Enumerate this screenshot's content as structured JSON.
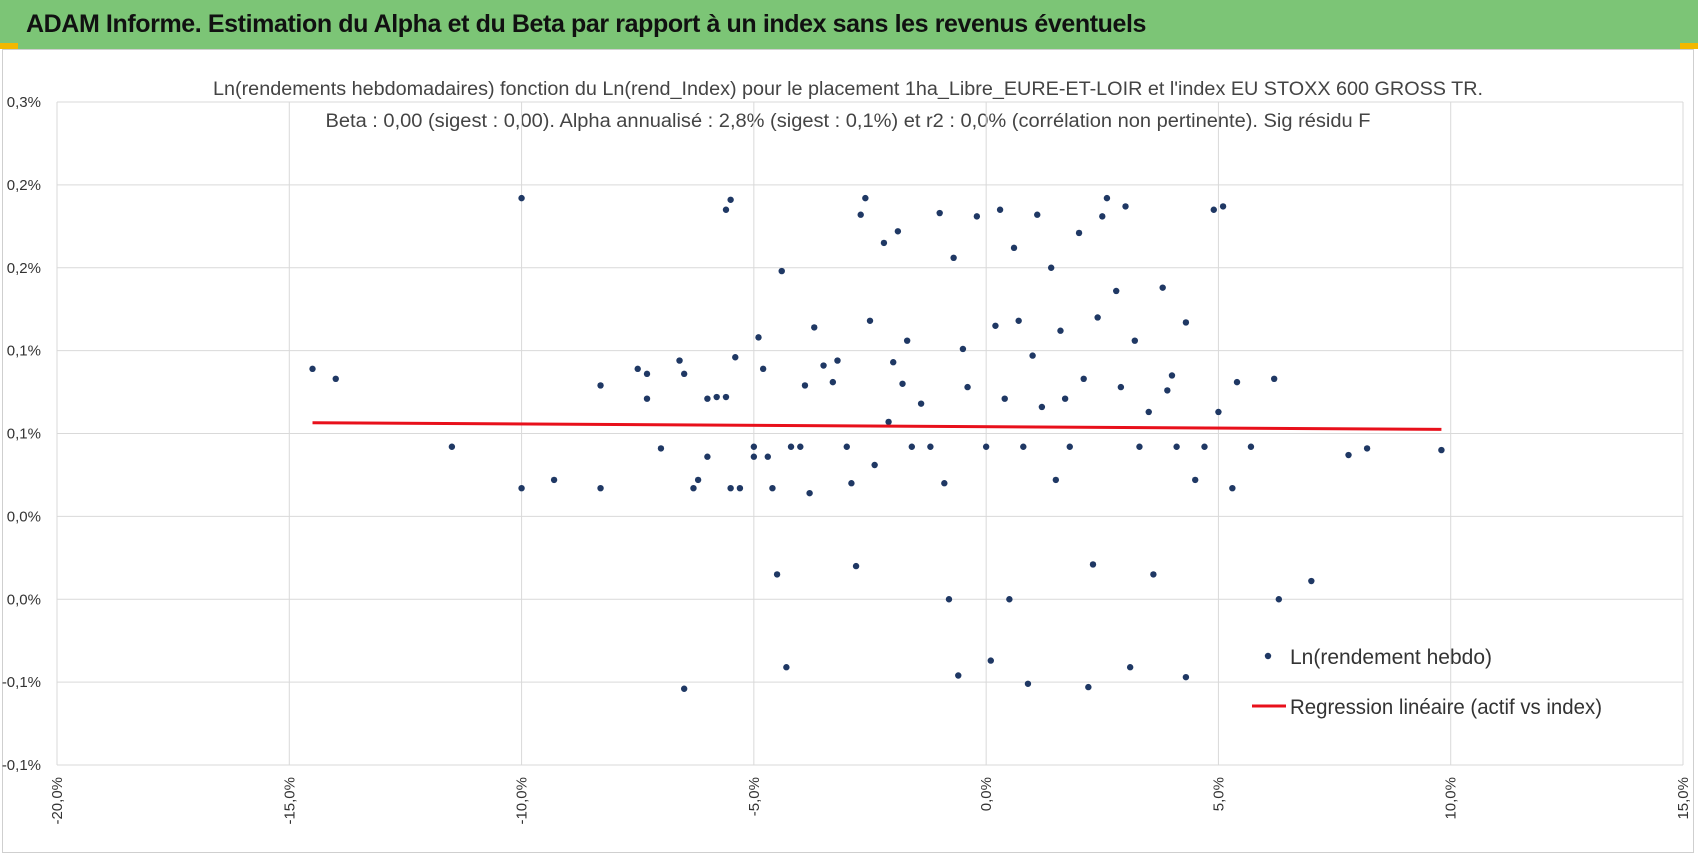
{
  "header": {
    "title": "ADAM Informe. Estimation du Alpha et du Beta par rapport à un index sans les revenus éventuels"
  },
  "colors": {
    "banner": "#7cc576",
    "accent_corner": "#f2b800",
    "points": "#1f3864",
    "regression": "#e8101b",
    "grid": "#d9d9d9"
  },
  "chart_data": {
    "type": "scatter",
    "title": "Ln(rendements hebdomadaires) fonction du Ln(rend_Index) pour le placement 1ha_Libre_EURE-ET-LOIR et l'index EU STOXX 600 GROSS TR.",
    "subtitle": "Beta : 0,00 (sigest : 0,00).  Alpha annualisé : 2,8% (sigest : 0,1%) et r2 : 0,0% (corrélation non pertinente). Sig résidu F",
    "xlabel": "",
    "ylabel": "",
    "xlim": [
      -20,
      15
    ],
    "ylim": [
      -0.1,
      0.3
    ],
    "x_ticks": [
      -20,
      -15,
      -10,
      -5,
      0,
      5,
      10,
      15
    ],
    "x_tick_labels": [
      "-20,0%",
      "-15,0%",
      "-10,0%",
      "-5,0%",
      "0,0%",
      "5,0%",
      "10,0%",
      "15,0%"
    ],
    "y_ticks": [
      0.3,
      0.25,
      0.2,
      0.15,
      0.1,
      0.05,
      0.0,
      -0.05,
      -0.1
    ],
    "y_tick_labels": [
      "0,3%",
      "0,2%",
      "0,2%",
      "0,1%",
      "0,1%",
      "0,0%",
      "0,0%",
      "-0,1%",
      "-0,1%"
    ],
    "grid": true,
    "legend_position": "bottom-right",
    "legend": [
      "Ln(rendement hebdo)",
      "Regression linéaire (actif vs index)"
    ],
    "series": [
      {
        "name": "Ln(rendement hebdo)",
        "kind": "scatter",
        "points": [
          [
            -14.5,
            0.139
          ],
          [
            -14.0,
            0.133
          ],
          [
            -11.5,
            0.092
          ],
          [
            -10.0,
            0.242
          ],
          [
            -10.0,
            0.067
          ],
          [
            -9.3,
            0.072
          ],
          [
            -8.3,
            0.067
          ],
          [
            -8.3,
            0.129
          ],
          [
            -7.5,
            0.139
          ],
          [
            -7.3,
            0.136
          ],
          [
            -7.3,
            0.121
          ],
          [
            -7.0,
            0.091
          ],
          [
            -6.6,
            0.144
          ],
          [
            -6.5,
            0.136
          ],
          [
            -6.5,
            -0.054
          ],
          [
            -6.3,
            0.067
          ],
          [
            -6.2,
            0.072
          ],
          [
            -6.0,
            0.086
          ],
          [
            -6.0,
            0.121
          ],
          [
            -5.8,
            0.122
          ],
          [
            -5.6,
            0.122
          ],
          [
            -5.6,
            0.235
          ],
          [
            -5.5,
            0.241
          ],
          [
            -5.5,
            0.067
          ],
          [
            -5.4,
            0.146
          ],
          [
            -5.3,
            0.067
          ],
          [
            -5.0,
            0.092
          ],
          [
            -5.0,
            0.086
          ],
          [
            -4.9,
            0.158
          ],
          [
            -4.8,
            0.139
          ],
          [
            -4.7,
            0.086
          ],
          [
            -4.6,
            0.067
          ],
          [
            -4.5,
            0.015
          ],
          [
            -4.4,
            0.198
          ],
          [
            -4.3,
            -0.041
          ],
          [
            -4.2,
            0.092
          ],
          [
            -4.0,
            0.092
          ],
          [
            -3.9,
            0.129
          ],
          [
            -3.8,
            0.064
          ],
          [
            -3.7,
            0.164
          ],
          [
            -3.5,
            0.141
          ],
          [
            -3.3,
            0.131
          ],
          [
            -3.2,
            0.144
          ],
          [
            -3.0,
            0.092
          ],
          [
            -2.9,
            0.07
          ],
          [
            -2.8,
            0.02
          ],
          [
            -2.7,
            0.232
          ],
          [
            -2.6,
            0.242
          ],
          [
            -2.5,
            0.168
          ],
          [
            -2.4,
            0.081
          ],
          [
            -2.2,
            0.215
          ],
          [
            -2.1,
            0.107
          ],
          [
            -2.0,
            0.143
          ],
          [
            -1.9,
            0.222
          ],
          [
            -1.8,
            0.13
          ],
          [
            -1.7,
            0.156
          ],
          [
            -1.6,
            0.092
          ],
          [
            -1.4,
            0.118
          ],
          [
            -1.2,
            0.092
          ],
          [
            -1.0,
            0.233
          ],
          [
            -0.9,
            0.07
          ],
          [
            -0.8,
            0.0
          ],
          [
            -0.7,
            0.206
          ],
          [
            -0.6,
            -0.046
          ],
          [
            -0.5,
            0.151
          ],
          [
            -0.4,
            0.128
          ],
          [
            -0.2,
            0.231
          ],
          [
            0.0,
            0.092
          ],
          [
            0.1,
            -0.037
          ],
          [
            0.2,
            0.165
          ],
          [
            0.3,
            0.235
          ],
          [
            0.4,
            0.121
          ],
          [
            0.5,
            0.0
          ],
          [
            0.6,
            0.212
          ],
          [
            0.7,
            0.168
          ],
          [
            0.8,
            0.092
          ],
          [
            0.9,
            -0.051
          ],
          [
            1.0,
            0.147
          ],
          [
            1.1,
            0.232
          ],
          [
            1.2,
            0.116
          ],
          [
            1.4,
            0.2
          ],
          [
            1.5,
            0.072
          ],
          [
            1.6,
            0.162
          ],
          [
            1.7,
            0.121
          ],
          [
            1.8,
            0.092
          ],
          [
            2.0,
            0.221
          ],
          [
            2.1,
            0.133
          ],
          [
            2.2,
            -0.053
          ],
          [
            2.3,
            0.021
          ],
          [
            2.4,
            0.17
          ],
          [
            2.5,
            0.231
          ],
          [
            2.6,
            0.242
          ],
          [
            2.8,
            0.186
          ],
          [
            2.9,
            0.128
          ],
          [
            3.0,
            0.237
          ],
          [
            3.1,
            -0.041
          ],
          [
            3.2,
            0.156
          ],
          [
            3.3,
            0.092
          ],
          [
            3.5,
            0.113
          ],
          [
            3.6,
            0.015
          ],
          [
            3.8,
            0.188
          ],
          [
            3.9,
            0.126
          ],
          [
            4.0,
            0.135
          ],
          [
            4.1,
            0.092
          ],
          [
            4.3,
            0.167
          ],
          [
            4.3,
            -0.047
          ],
          [
            4.5,
            0.072
          ],
          [
            4.7,
            0.092
          ],
          [
            4.9,
            0.235
          ],
          [
            5.0,
            0.113
          ],
          [
            5.1,
            0.237
          ],
          [
            5.3,
            0.067
          ],
          [
            5.4,
            0.131
          ],
          [
            5.7,
            0.092
          ],
          [
            6.2,
            0.133
          ],
          [
            6.3,
            0.0
          ],
          [
            7.0,
            0.011
          ],
          [
            7.8,
            0.087
          ],
          [
            8.2,
            0.091
          ],
          [
            9.8,
            0.09
          ]
        ]
      },
      {
        "name": "Regression linéaire (actif vs index)",
        "kind": "line",
        "x": [
          -14.5,
          9.8
        ],
        "y": [
          0.1065,
          0.1025
        ]
      }
    ]
  }
}
